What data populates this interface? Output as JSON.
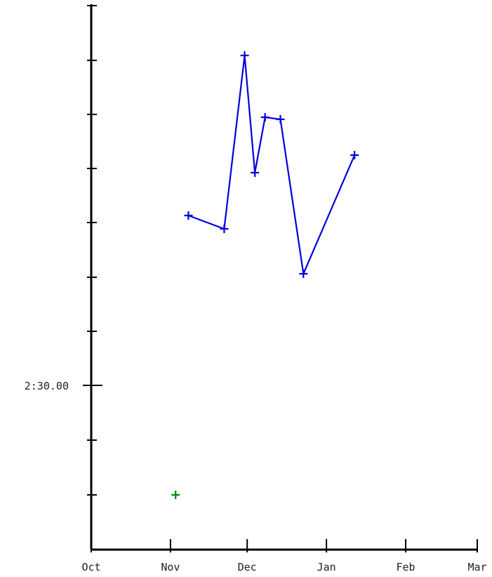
{
  "chart_data": {
    "type": "line",
    "title": "",
    "xlabel": "",
    "ylabel": "",
    "x_ticks": [
      {
        "value": "10-01",
        "label": "Oct"
      },
      {
        "value": "11-01",
        "label": "Nov"
      },
      {
        "value": "12-01",
        "label": "Dec"
      },
      {
        "value": "01-01",
        "label": "Jan"
      },
      {
        "value": "02-01",
        "label": "Feb"
      },
      {
        "value": "03-01",
        "label": "Mar"
      }
    ],
    "y_ticks": [
      {
        "value": "2:30.00",
        "label": "2:30.00"
      }
    ],
    "grid": false,
    "legend": "none",
    "series": [
      {
        "color": "#0000dd",
        "marker": "plus",
        "points": [
          {
            "x": "11-08"
          },
          {
            "x": "11-22"
          },
          {
            "x": "11-30"
          },
          {
            "x": "12-04"
          },
          {
            "x": "12-08"
          },
          {
            "x": "12-14"
          },
          {
            "x": "12-23"
          },
          {
            "x": "01-12"
          }
        ]
      },
      {
        "color": "#008800",
        "marker": "plus",
        "points": [
          {
            "x": "11-03"
          }
        ]
      }
    ]
  }
}
